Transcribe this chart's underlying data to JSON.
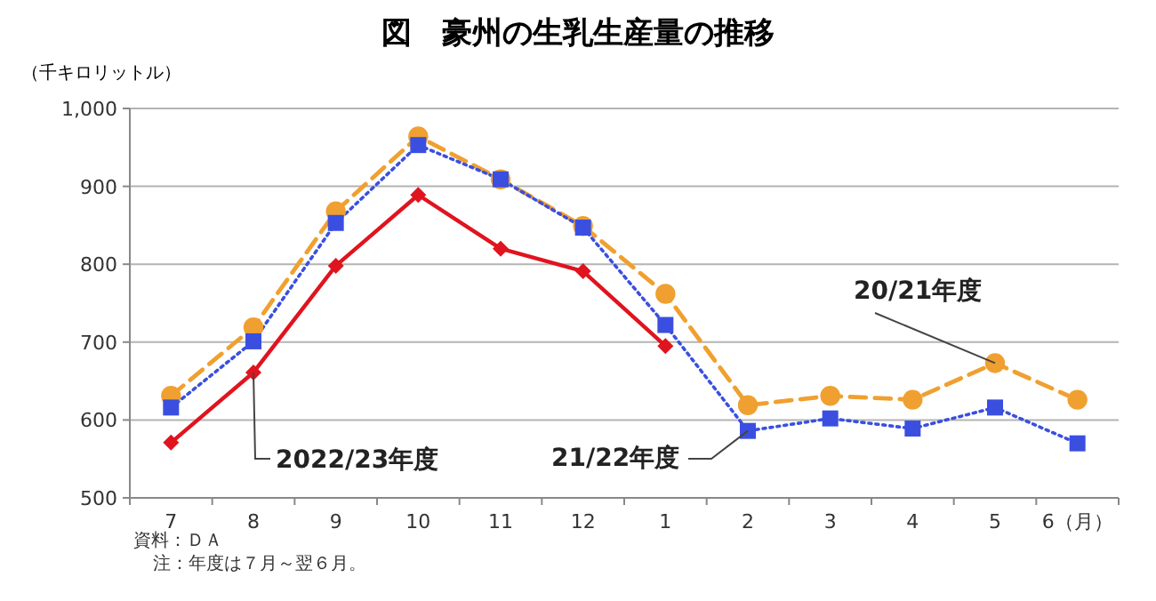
{
  "chart_data": {
    "type": "line",
    "title": "図　豪州の生乳生産量の推移",
    "ylabel": "（千キロリットル）",
    "categories": [
      "7",
      "8",
      "9",
      "10",
      "11",
      "12",
      "1",
      "2",
      "3",
      "4",
      "5",
      "6（月）"
    ],
    "ylim": [
      500,
      1000
    ],
    "yticks": [
      500,
      600,
      700,
      800,
      900,
      {
        "value": 1000,
        "label": "1,000"
      }
    ],
    "grid": "y",
    "series": [
      {
        "name": "20/21年度",
        "color": "#f0a030",
        "marker": "circle",
        "line_style": "dashed",
        "values": [
          631,
          719,
          868,
          964,
          909,
          849,
          762,
          619,
          631,
          626,
          673,
          626
        ]
      },
      {
        "name": "21/22年度",
        "color": "#3a4fe0",
        "marker": "square",
        "line_style": "dotted",
        "values": [
          616,
          701,
          853,
          953,
          909,
          847,
          722,
          586,
          602,
          589,
          616,
          570
        ]
      },
      {
        "name": "2022/23年度",
        "color": "#e0141e",
        "marker": "diamond",
        "line_style": "solid",
        "values": [
          571,
          661,
          798,
          889,
          820,
          791,
          695,
          null,
          null,
          null,
          null,
          null
        ]
      }
    ],
    "annotations": [
      "資料：ＤＡ",
      "注：年度は７月～翌６月。"
    ]
  }
}
